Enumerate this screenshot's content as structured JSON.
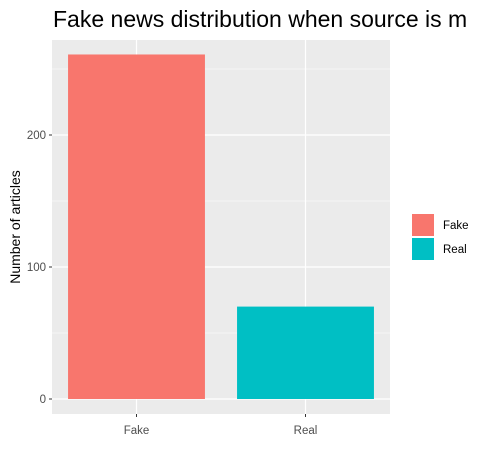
{
  "chart_data": {
    "type": "bar",
    "title": "Fake news distribution when source is m",
    "categories": [
      "Fake",
      "Real"
    ],
    "values": [
      261,
      70
    ],
    "xlabel": "",
    "ylabel": "Number of articles",
    "ylim": [
      0,
      261
    ],
    "yticks": [
      0,
      100,
      200
    ],
    "grid": true,
    "background": "#EBEBEB",
    "grid_color": "#FFFFFF",
    "legend": {
      "position": "right",
      "items": [
        {
          "label": "Fake",
          "color": "#F8766D"
        },
        {
          "label": "Real",
          "color": "#00BFC4"
        }
      ]
    },
    "bar_colors": [
      "#F8766D",
      "#00BFC4"
    ]
  }
}
